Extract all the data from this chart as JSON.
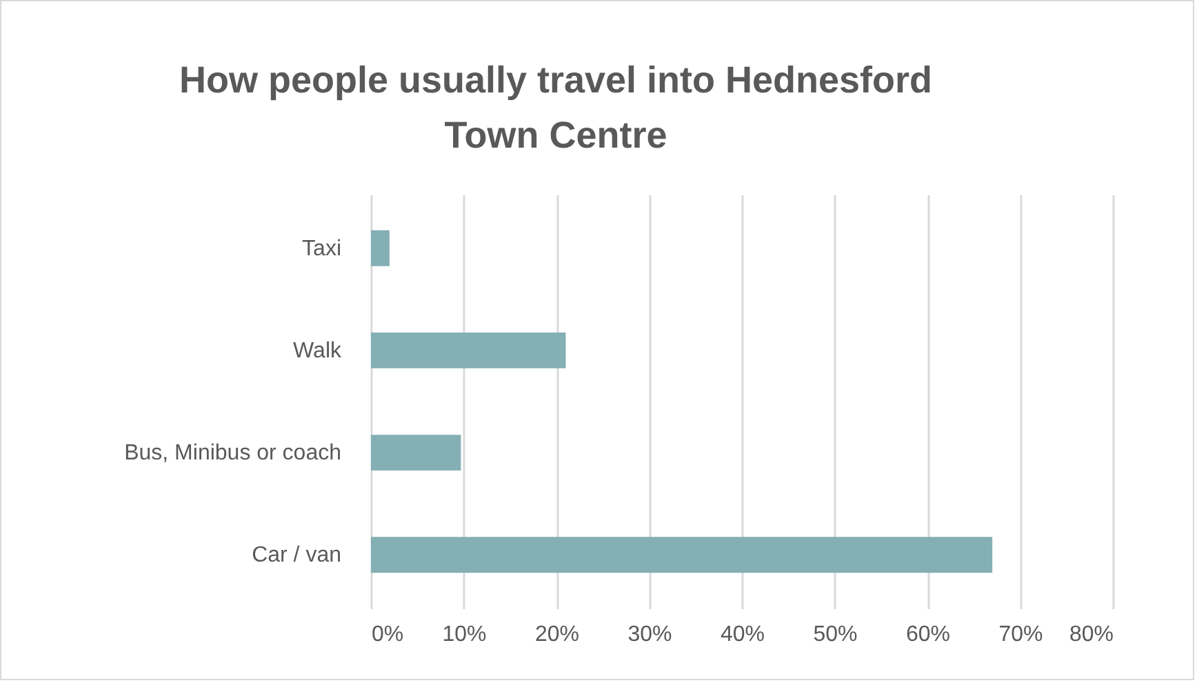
{
  "chart_data": {
    "type": "bar",
    "orientation": "horizontal",
    "title": "How people usually travel into Hednesford Town Centre",
    "categories": [
      "Taxi",
      "Walk",
      "Bus, Minibus or coach",
      "Car / van"
    ],
    "values": [
      2,
      21,
      9.7,
      67
    ],
    "color": "#84afb4",
    "xlim": [
      0,
      80
    ],
    "xticks": [
      {
        "value": 0,
        "label": "0%"
      },
      {
        "value": 10,
        "label": "10%"
      },
      {
        "value": 20,
        "label": "20%"
      },
      {
        "value": 30,
        "label": "30%"
      },
      {
        "value": 40,
        "label": "40%"
      },
      {
        "value": 50,
        "label": "50%"
      },
      {
        "value": 60,
        "label": "60%"
      },
      {
        "value": 70,
        "label": "70%"
      },
      {
        "value": 80,
        "label": "80%"
      }
    ],
    "grid": "x"
  }
}
